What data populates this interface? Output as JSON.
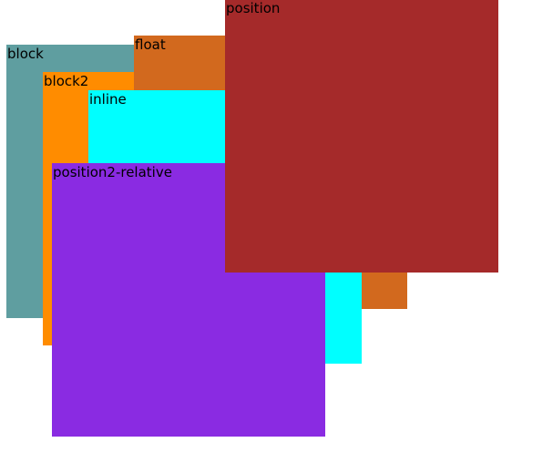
{
  "boxes": {
    "block": {
      "label": "block",
      "color": "#5f9ea0"
    },
    "block2": {
      "label": "block2",
      "color": "#ff8c00"
    },
    "float": {
      "label": "float",
      "color": "#d2691e"
    },
    "inline": {
      "label": "inline",
      "color": "#00ffff"
    },
    "position2": {
      "label": "position2-relative",
      "color": "#8a2be2"
    },
    "position": {
      "label": "position",
      "color": "#a52a2a"
    }
  }
}
